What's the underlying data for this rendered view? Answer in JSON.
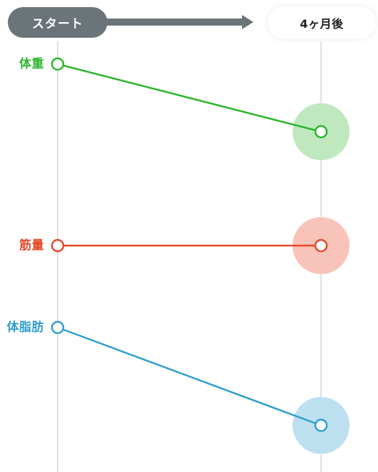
{
  "header": {
    "start_label": "スタート",
    "end_label": "4ヶ月後"
  },
  "colors": {
    "arrow": "#6b7479",
    "weight": "#2db52d",
    "weight_bubble": "#bfe8bf",
    "muscle": "#e34a2b",
    "muscle_bubble": "#f8c3b8",
    "body_fat": "#2f9fce",
    "body_fat_bubble": "#bde0f0",
    "guide_line": "#d6d6d6"
  },
  "chart_data": {
    "type": "line",
    "categories": [
      "スタート",
      "4ヶ月後"
    ],
    "series": [
      {
        "name": "体重",
        "key": "weight",
        "values": [
          100,
          62
        ]
      },
      {
        "name": "筋量",
        "key": "muscle",
        "values": [
          100,
          100
        ]
      },
      {
        "name": "体脂肪",
        "key": "body_fat",
        "values": [
          100,
          45
        ]
      }
    ],
    "ylim": [
      0,
      100
    ],
    "grid": false,
    "legend": "none"
  }
}
